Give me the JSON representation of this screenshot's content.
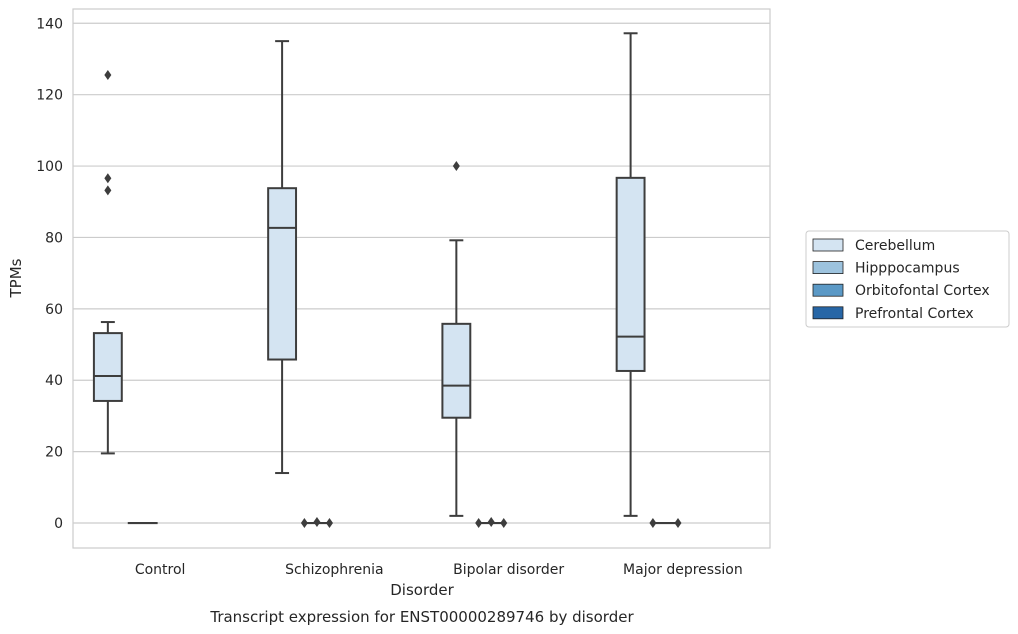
{
  "chart_data": {
    "type": "box",
    "title": "Transcript expression for ENST00000289746 by disorder",
    "xlabel": "Disorder",
    "ylabel": "TPMs",
    "ylim": [
      -7,
      144
    ],
    "yticks": [
      0,
      20,
      40,
      60,
      80,
      100,
      120,
      140
    ],
    "grid": "horizontal",
    "legend_position": "right",
    "categories": [
      "Control",
      "Schizophrenia",
      "Bipolar disorder",
      "Major depression"
    ],
    "series": [
      {
        "name": "Cerebellum",
        "color": "#d4e4f2",
        "boxes": [
          {
            "whisker_low": 19.5,
            "q1": 34.2,
            "median": 41.2,
            "q3": 53.2,
            "whisker_high": 56.3,
            "outliers": [
              93.2,
              96.6,
              125.5
            ]
          },
          {
            "whisker_low": 14.0,
            "q1": 45.8,
            "median": 82.7,
            "q3": 93.8,
            "whisker_high": 135.0,
            "outliers": []
          },
          {
            "whisker_low": 2.0,
            "q1": 29.5,
            "median": 38.5,
            "q3": 55.8,
            "whisker_high": 79.2,
            "outliers": [
              100.0
            ]
          },
          {
            "whisker_low": 2.0,
            "q1": 42.6,
            "median": 52.2,
            "q3": 96.7,
            "whisker_high": 137.2,
            "outliers": []
          }
        ]
      },
      {
        "name": "Hipppocampus",
        "color": "#9dc3de",
        "boxes": [
          {
            "whisker_low": 0,
            "q1": 0,
            "median": 0,
            "q3": 0,
            "whisker_high": 0,
            "outliers": []
          },
          {
            "whisker_low": 0,
            "q1": 0,
            "median": 0,
            "q3": 0,
            "whisker_high": 0,
            "outliers": [
              0,
              0.3,
              0
            ]
          },
          {
            "whisker_low": 0,
            "q1": 0,
            "median": 0,
            "q3": 0,
            "whisker_high": 0,
            "outliers": [
              0,
              0.3,
              0
            ]
          },
          {
            "whisker_low": 0,
            "q1": 0,
            "median": 0,
            "q3": 0,
            "whisker_high": 0,
            "outliers": [
              0,
              0
            ]
          }
        ]
      },
      {
        "name": "Orbitofontal Cortex",
        "color": "#5b99c6",
        "boxes": []
      },
      {
        "name": "Prefrontal Cortex",
        "color": "#2766a6",
        "boxes": []
      }
    ]
  }
}
